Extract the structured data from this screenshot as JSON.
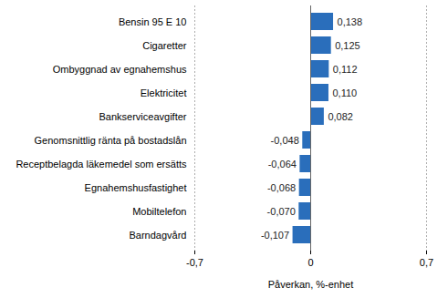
{
  "chart_data": {
    "type": "bar",
    "orientation": "horizontal",
    "categories": [
      "Bensin 95 E 10",
      "Cigaretter",
      "Ombyggnad av egnahemshus",
      "Elektricitet",
      "Bankserviceavgifter",
      "Genomsnittlig ränta på bostadslån",
      "Receptbelagda läkemedel som ersätts",
      "Egnahemshusfastighet",
      "Mobiltelefon",
      "Barndagvård"
    ],
    "values": [
      0.138,
      0.125,
      0.112,
      0.11,
      0.082,
      -0.048,
      -0.064,
      -0.068,
      -0.07,
      -0.107
    ],
    "value_labels": [
      "0,138",
      "0,125",
      "0,112",
      "0,110",
      "0,082",
      "-0,048",
      "-0,064",
      "-0,068",
      "-0,070",
      "-0,107"
    ],
    "data_labels": true,
    "color": "#2a6ebb",
    "x_label": "Påverkan, %-enhet",
    "xlim": [
      -0.7,
      0.7
    ],
    "xticks": [
      {
        "value": -0.7,
        "label": "-0,7"
      },
      0,
      {
        "value": 0.7,
        "label": "0,7"
      }
    ],
    "grid": true
  }
}
